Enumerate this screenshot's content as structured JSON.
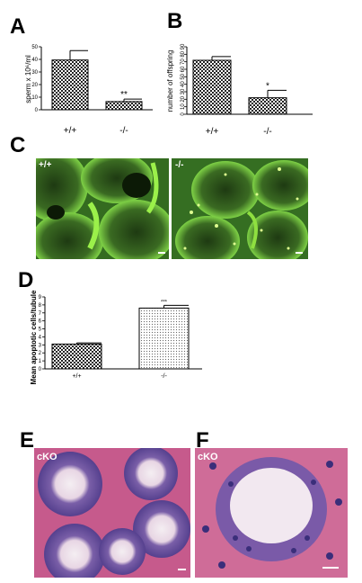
{
  "panels": {
    "A": "A",
    "B": "B",
    "C": "C",
    "D": "D",
    "E": "E",
    "F": "F"
  },
  "image_labels": {
    "c_left": "+/+",
    "c_right": "-/-",
    "e": "cKO",
    "f": "cKO"
  },
  "colors": {
    "fluorescence_green": "#3fa62a",
    "he_pink": "#c65a8c",
    "he_purple": "#4b3a8a"
  },
  "chart_data": [
    {
      "id": "A",
      "type": "bar",
      "categories": [
        "+/+",
        "-/-"
      ],
      "values": [
        39.5,
        6.5
      ],
      "errors": [
        7.5,
        2
      ],
      "significance": [
        "",
        "**"
      ],
      "ylabel": "sperm x 10⁶/ml",
      "ylim": [
        0,
        50
      ],
      "yticks": [
        "0",
        "10",
        "20",
        "30",
        "40",
        "50"
      ],
      "pattern": "checkered"
    },
    {
      "id": "B",
      "type": "bar",
      "categories": [
        "+/+",
        "-/-"
      ],
      "values": [
        72,
        22
      ],
      "errors": [
        5,
        10
      ],
      "significance": [
        "",
        "*"
      ],
      "ylabel": "number of offspring",
      "ylim": [
        0,
        90
      ],
      "yticks": [
        "0",
        "10",
        "20",
        "30",
        "40",
        "50",
        "60",
        "70",
        "80",
        "90"
      ],
      "pattern": "checkered"
    },
    {
      "id": "D",
      "type": "bar",
      "categories": [
        "+/+",
        "-/-"
      ],
      "values": [
        3.1,
        7.6
      ],
      "errors": [
        0.15,
        0.35
      ],
      "significance": [
        "",
        "***"
      ],
      "ylabel": "Mean apoptotic cells/tubule",
      "ylim": [
        0,
        9
      ],
      "yticks": [
        "0",
        "1",
        "2",
        "3",
        "4",
        "5",
        "6",
        "7",
        "8",
        "9"
      ],
      "pattern": [
        "checkered",
        "dotted"
      ]
    }
  ]
}
